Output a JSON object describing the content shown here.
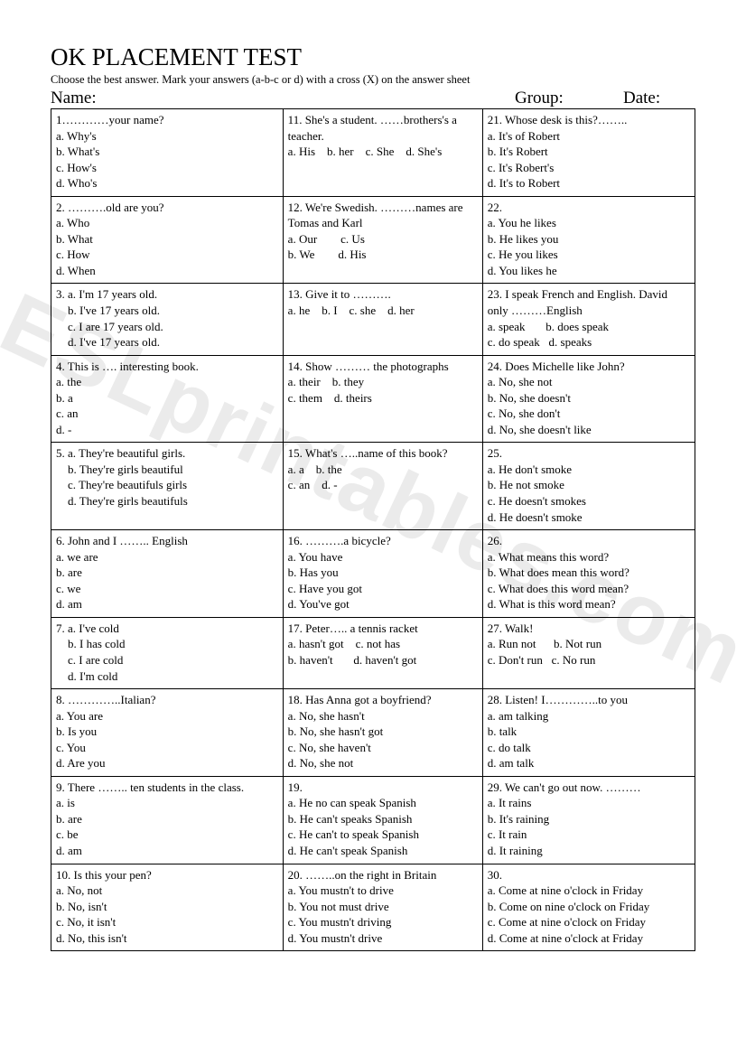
{
  "title": "OK PLACEMENT TEST",
  "instructions": "Choose the best answer. Mark your answers (a-b-c or d) with a cross (X) on the answer sheet",
  "header": {
    "name": "Name:",
    "group": "Group:",
    "date": "Date:"
  },
  "watermark": "ESLprintables.com",
  "columns": [
    [
      {
        "lines": [
          "1…………your name?",
          "a. Why's",
          "b. What's",
          "c. How's",
          "d. Who's"
        ]
      },
      {
        "lines": [
          "2. ……….old are you?",
          "a. Who",
          "b. What",
          "c. How",
          "d. When"
        ]
      },
      {
        "lines": [
          "3. a. I'm 17 years old.",
          "    b. I've 17 years old.",
          "    c. I are 17 years old.",
          "    d. I've 17 years old."
        ]
      },
      {
        "lines": [
          "4. This is …. interesting book.",
          "a. the",
          "b. a",
          "c. an",
          "d. -"
        ]
      },
      {
        "lines": [
          "5. a. They're beautiful girls.",
          "    b. They're girls beautiful",
          "    c. They're beautifuls girls",
          "    d. They're girls beautifuls"
        ]
      },
      {
        "lines": [
          "6. John and I …….. English",
          "a. we are",
          "b. are",
          "c. we",
          "d. am"
        ]
      },
      {
        "lines": [
          "7. a. I've cold",
          "    b. I has cold",
          "    c. I are cold",
          "    d. I'm cold"
        ]
      },
      {
        "lines": [
          "8. …………..Italian?",
          "a. You are",
          "b. Is you",
          "c. You",
          "d. Are you"
        ]
      },
      {
        "lines": [
          "9. There …….. ten students in the class.",
          "a. is",
          "b. are",
          "c. be",
          "d. am"
        ]
      },
      {
        "lines": [
          "10. Is this your pen?",
          "a. No, not",
          "b. No, isn't",
          "c. No, it isn't",
          "d. No, this isn't"
        ]
      }
    ],
    [
      {
        "lines": [
          "11. She's a student. ……brothers's a teacher.",
          "a. His    b. her    c. She    d. She's"
        ]
      },
      {
        "lines": [
          "12. We're Swedish. ………names are Tomas and Karl",
          "a. Our        c. Us",
          "b. We        d. His"
        ]
      },
      {
        "lines": [
          "13. Give it to ……….",
          "a. he    b. I    c. she    d. her"
        ]
      },
      {
        "lines": [
          "14. Show ……… the photographs",
          "a. their    b. they",
          "c. them    d. theirs"
        ]
      },
      {
        "lines": [
          "15. What's …..name of this book?",
          "a. a    b. the",
          "c. an    d. -"
        ]
      },
      {
        "lines": [
          "16. ……….a bicycle?",
          "a. You have",
          "b. Has you",
          "c. Have you got",
          "d. You've got"
        ]
      },
      {
        "lines": [
          "17. Peter….. a tennis racket",
          "a. hasn't got    c. not has",
          "b. haven't       d. haven't got"
        ]
      },
      {
        "lines": [
          "18. Has Anna got a boyfriend?",
          "a. No, she hasn't",
          "b. No, she hasn't got",
          "c. No, she haven't",
          "d. No, she not"
        ]
      },
      {
        "lines": [
          "19.",
          "a. He no can speak Spanish",
          "b. He can't speaks Spanish",
          "c. He can't to speak Spanish",
          "d. He can't speak Spanish"
        ]
      },
      {
        "lines": [
          "20. ……..on the right in Britain",
          "a. You mustn't to drive",
          "b. You not must drive",
          "c. You mustn't driving",
          "d. You mustn't drive"
        ]
      }
    ],
    [
      {
        "lines": [
          "21. Whose desk is this?……..",
          "a. It's of Robert",
          "b. It's Robert",
          "c. It's Robert's",
          "d. It's to Robert"
        ]
      },
      {
        "lines": [
          "22.",
          "a. You he likes",
          "b. He likes you",
          "c. He you likes",
          "d. You likes he"
        ]
      },
      {
        "lines": [
          "23. I speak French and English. David only ………English",
          "a. speak       b. does speak",
          "c. do speak   d. speaks"
        ]
      },
      {
        "lines": [
          "24. Does Michelle like John?",
          "a. No, she not",
          "b. No, she doesn't",
          "c. No, she don't",
          "d. No, she doesn't like"
        ]
      },
      {
        "lines": [
          "25.",
          "a. He don't smoke",
          "b. He not smoke",
          "c. He doesn't smokes",
          "d. He doesn't smoke"
        ]
      },
      {
        "lines": [
          "26.",
          "a. What means this word?",
          "b. What does mean this word?",
          "c. What does this word mean?",
          "d. What is this word mean?"
        ]
      },
      {
        "lines": [
          "27. Walk!",
          "a. Run not      b. Not run",
          "c. Don't run   c. No run"
        ]
      },
      {
        "lines": [
          "28. Listen! I…………..to you",
          "a. am talking",
          "b. talk",
          "c. do talk",
          "d. am talk"
        ]
      },
      {
        "lines": [
          "29. We can't go out now. ………",
          "a. It rains",
          "b. It's raining",
          "c. It rain",
          "d. It raining"
        ]
      },
      {
        "lines": [
          "30.",
          "a. Come at nine o'clock in Friday",
          "b. Come on nine o'clock on Friday",
          "c. Come at nine o'clock on Friday",
          "d. Come at nine o'clock at Friday"
        ]
      }
    ]
  ]
}
